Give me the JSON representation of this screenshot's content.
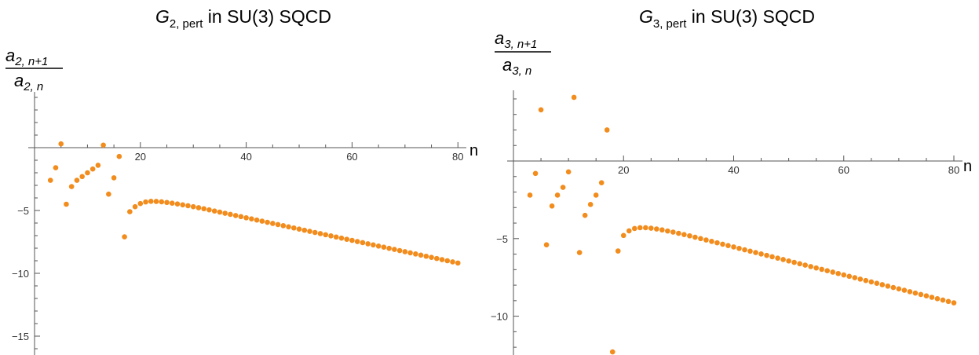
{
  "chart_data": [
    {
      "type": "scatter",
      "title": {
        "base": "G",
        "sub": "2, pert",
        "rest": " in SU(3) SQCD"
      },
      "ylabel": {
        "num_base": "a",
        "num_sub": "2, n+1",
        "den_base": "a",
        "den_sub": "2, n"
      },
      "xlabel": "n",
      "xlim": [
        0,
        81
      ],
      "ylim": [
        -16.5,
        4
      ],
      "xticks": [
        20,
        40,
        60,
        80
      ],
      "yticks": [
        -5,
        -10,
        -15
      ],
      "xtick_labels": [
        "20",
        "40",
        "60",
        "80"
      ],
      "ytick_labels": [
        "−5",
        "−10",
        "−15"
      ],
      "marker_color": "#f28c1c",
      "series": [
        {
          "x": [
            3,
            4,
            5,
            6,
            7,
            8,
            9,
            10,
            11,
            12,
            13,
            14,
            15,
            16,
            17,
            18,
            19,
            20,
            21,
            22,
            23,
            24,
            25,
            26,
            27,
            28,
            29,
            30,
            31,
            32,
            33,
            34,
            35,
            36,
            37,
            38,
            39,
            40,
            41,
            42,
            43,
            44,
            45,
            46,
            47,
            48,
            49,
            50,
            51,
            52,
            53,
            54,
            55,
            56,
            57,
            58,
            59,
            60,
            61,
            62,
            63,
            64,
            65,
            66,
            67,
            68,
            69,
            70,
            71,
            72,
            73,
            74,
            75,
            76,
            77,
            78,
            79,
            80
          ],
          "y": [
            -2.6,
            -1.6,
            0.3,
            -4.5,
            -3.1,
            -2.6,
            -2.3,
            -2.0,
            -1.7,
            -1.4,
            0.2,
            -3.7,
            -2.4,
            -0.7,
            -7.1,
            -5.1,
            -4.7,
            -4.45,
            -4.32,
            -4.27,
            -4.28,
            -4.31,
            -4.36,
            -4.42,
            -4.48,
            -4.55,
            -4.62,
            -4.7,
            -4.78,
            -4.86,
            -4.95,
            -5.04,
            -5.13,
            -5.22,
            -5.31,
            -5.4,
            -5.49,
            -5.58,
            -5.67,
            -5.76,
            -5.85,
            -5.94,
            -6.03,
            -6.12,
            -6.21,
            -6.3,
            -6.39,
            -6.48,
            -6.57,
            -6.66,
            -6.75,
            -6.84,
            -6.93,
            -7.02,
            -7.11,
            -7.2,
            -7.29,
            -7.38,
            -7.47,
            -7.56,
            -7.65,
            -7.74,
            -7.83,
            -7.92,
            -8.01,
            -8.1,
            -8.19,
            -8.28,
            -8.37,
            -8.46,
            -8.55,
            -8.64,
            -8.73,
            -8.82,
            -8.91,
            -9.0,
            -9.09,
            -9.18
          ]
        }
      ]
    },
    {
      "type": "scatter",
      "title": {
        "base": "G",
        "sub": "3, pert",
        "rest": " in SU(3) SQCD"
      },
      "ylabel": {
        "num_base": "a",
        "num_sub": "3, n+1",
        "den_base": "a",
        "den_sub": "3, n"
      },
      "xlabel": "n",
      "xlim": [
        0,
        81
      ],
      "ylim": [
        -12.5,
        4.2
      ],
      "xticks": [
        20,
        40,
        60,
        80
      ],
      "yticks": [
        -5,
        -10
      ],
      "xtick_labels": [
        "20",
        "40",
        "60",
        "80"
      ],
      "ytick_labels": [
        "−5",
        "−10"
      ],
      "marker_color": "#f28c1c",
      "series": [
        {
          "x": [
            3,
            4,
            5,
            6,
            7,
            8,
            9,
            10,
            11,
            12,
            13,
            14,
            15,
            16,
            17,
            18,
            19,
            20,
            21,
            22,
            23,
            24,
            25,
            26,
            27,
            28,
            29,
            30,
            31,
            32,
            33,
            34,
            35,
            36,
            37,
            38,
            39,
            40,
            41,
            42,
            43,
            44,
            45,
            46,
            47,
            48,
            49,
            50,
            51,
            52,
            53,
            54,
            55,
            56,
            57,
            58,
            59,
            60,
            61,
            62,
            63,
            64,
            65,
            66,
            67,
            68,
            69,
            70,
            71,
            72,
            73,
            74,
            75,
            76,
            77,
            78,
            79,
            80
          ],
          "y": [
            -2.2,
            -0.8,
            3.3,
            -5.4,
            -2.9,
            -2.2,
            -1.7,
            -0.7,
            4.1,
            -5.9,
            -3.5,
            -2.8,
            -2.2,
            -1.4,
            2.0,
            -12.3,
            -5.8,
            -4.8,
            -4.5,
            -4.35,
            -4.3,
            -4.3,
            -4.33,
            -4.38,
            -4.44,
            -4.51,
            -4.58,
            -4.66,
            -4.74,
            -4.82,
            -4.91,
            -5.0,
            -5.09,
            -5.18,
            -5.27,
            -5.36,
            -5.45,
            -5.54,
            -5.63,
            -5.72,
            -5.81,
            -5.9,
            -5.99,
            -6.08,
            -6.17,
            -6.26,
            -6.35,
            -6.44,
            -6.53,
            -6.62,
            -6.71,
            -6.8,
            -6.89,
            -6.98,
            -7.07,
            -7.16,
            -7.25,
            -7.34,
            -7.43,
            -7.52,
            -7.61,
            -7.7,
            -7.79,
            -7.88,
            -7.97,
            -8.06,
            -8.15,
            -8.24,
            -8.33,
            -8.42,
            -8.51,
            -8.6,
            -8.69,
            -8.78,
            -8.87,
            -8.96,
            -9.05,
            -9.14
          ]
        }
      ]
    }
  ]
}
